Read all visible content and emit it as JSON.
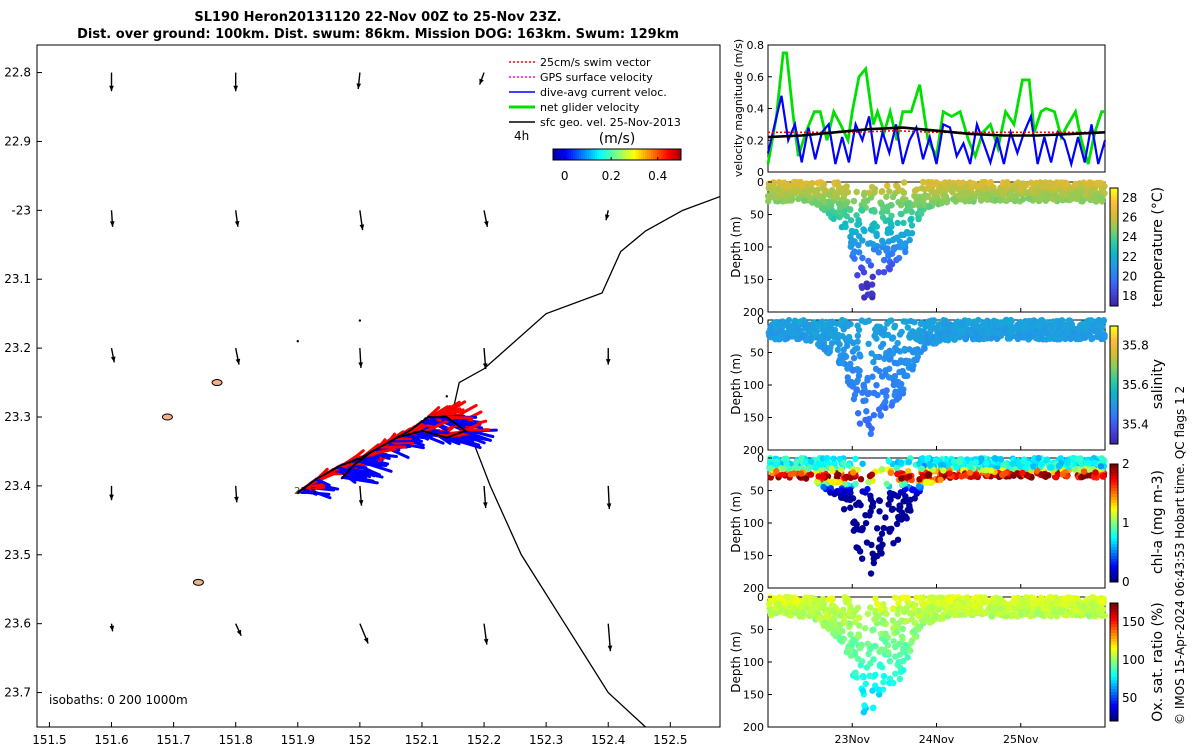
{
  "title": {
    "line1": "SL190 Heron20131120 22-Nov 00Z to 25-Nov 23Z.",
    "line2": "Dist. over ground: 100km. Dist. swum: 86km. Mission DOG: 163km. Swum: 129km"
  },
  "watermark": "© IMOS 15-Apr-2024 06:43:53 Hobart time. QC flags 1  2",
  "colors": {
    "swim": "#ff0000",
    "gps": "#ff00ff",
    "dive_avg": "#0000ff",
    "net": "#00e000",
    "sfc_geo": "#000000",
    "coast": "#000000",
    "island": "#f5b08a"
  },
  "chart_data": [
    {
      "id": "track_map",
      "type": "scatter",
      "xlim": [
        151.48,
        152.58
      ],
      "ylim": [
        -23.75,
        -22.76
      ],
      "xticks": [
        151.5,
        151.6,
        151.7,
        151.8,
        151.9,
        152,
        152.1,
        152.2,
        152.3,
        152.4,
        152.5
      ],
      "xtick_labels": [
        "151.5",
        "151.6",
        "151.7",
        "151.8",
        "151.9",
        "152",
        "152.1",
        "152.2",
        "152.3",
        "152.4",
        "152.5"
      ],
      "yticks": [
        -22.8,
        -22.9,
        -23.0,
        -23.1,
        -23.2,
        -23.3,
        -23.4,
        -23.5,
        -23.6,
        -23.7
      ],
      "ytick_labels": [
        "22.8",
        "22.9",
        "-23",
        "23.1",
        "23.2",
        "23.3",
        "23.4",
        "23.5",
        "23.6",
        "23.7"
      ],
      "legend": [
        {
          "label": "25cm/s swim vector",
          "color": "#ff0000",
          "style": "dotted"
        },
        {
          "label": "GPS surface velocity",
          "color": "#ff00ff",
          "style": "dotted"
        },
        {
          "label": "dive-avg current veloc.",
          "color": "#0000ff",
          "style": "solid"
        },
        {
          "label": "net glider velocity",
          "color": "#00e000",
          "style": "solid"
        },
        {
          "label": "sfc geo. vel. 25-Nov-2013",
          "color": "#000000",
          "style": "solid"
        }
      ],
      "time_scale_label": "4h",
      "colorbar": {
        "label": "(m/s)",
        "ticks": [
          0,
          0.2,
          0.4
        ],
        "tick_labels": [
          "0",
          "0.2",
          "0.4"
        ],
        "range": [
          -0.05,
          0.5
        ]
      },
      "isobath_label": "isobaths: 0   200  1000m",
      "start_label": "22-5",
      "geo_vectors": [
        {
          "lon": 151.6,
          "lat": -22.8,
          "u": 0.0,
          "v": -0.34
        },
        {
          "lon": 151.8,
          "lat": -22.8,
          "u": 0.0,
          "v": -0.34
        },
        {
          "lon": 152.0,
          "lat": -22.8,
          "u": -0.03,
          "v": -0.3
        },
        {
          "lon": 152.2,
          "lat": -22.8,
          "u": -0.08,
          "v": -0.22
        },
        {
          "lon": 152.4,
          "lat": -22.8,
          "u": 0.0,
          "v": 0.0
        },
        {
          "lon": 151.6,
          "lat": -23.0,
          "u": 0.02,
          "v": -0.3
        },
        {
          "lon": 151.8,
          "lat": -23.0,
          "u": 0.04,
          "v": -0.3
        },
        {
          "lon": 152.0,
          "lat": -23.0,
          "u": 0.05,
          "v": -0.36
        },
        {
          "lon": 152.2,
          "lat": -23.0,
          "u": 0.06,
          "v": -0.3
        },
        {
          "lon": 152.4,
          "lat": -23.0,
          "u": -0.04,
          "v": -0.18
        },
        {
          "lon": 151.6,
          "lat": -23.2,
          "u": 0.05,
          "v": -0.26
        },
        {
          "lon": 151.8,
          "lat": -23.2,
          "u": 0.06,
          "v": -0.3
        },
        {
          "lon": 152.0,
          "lat": -23.2,
          "u": 0.02,
          "v": -0.36
        },
        {
          "lon": 152.2,
          "lat": -23.2,
          "u": 0.03,
          "v": -0.38
        },
        {
          "lon": 152.4,
          "lat": -23.2,
          "u": 0.0,
          "v": -0.3
        },
        {
          "lon": 151.6,
          "lat": -23.4,
          "u": 0.0,
          "v": -0.26
        },
        {
          "lon": 151.8,
          "lat": -23.4,
          "u": 0.02,
          "v": -0.3
        },
        {
          "lon": 152.0,
          "lat": -23.4,
          "u": 0.03,
          "v": -0.36
        },
        {
          "lon": 152.2,
          "lat": -23.4,
          "u": 0.03,
          "v": -0.4
        },
        {
          "lon": 152.4,
          "lat": -23.4,
          "u": 0.02,
          "v": -0.42
        },
        {
          "lon": 151.6,
          "lat": -23.6,
          "u": 0.02,
          "v": -0.14
        },
        {
          "lon": 151.8,
          "lat": -23.6,
          "u": 0.1,
          "v": -0.22
        },
        {
          "lon": 152.0,
          "lat": -23.6,
          "u": 0.15,
          "v": -0.36
        },
        {
          "lon": 152.2,
          "lat": -23.6,
          "u": 0.05,
          "v": -0.38
        },
        {
          "lon": 152.4,
          "lat": -23.6,
          "u": 0.04,
          "v": -0.5
        }
      ],
      "isobath_1000m": [
        [
          152.58,
          -22.98
        ],
        [
          152.52,
          -23.0
        ],
        [
          152.46,
          -23.03
        ],
        [
          152.42,
          -23.06
        ],
        [
          152.39,
          -23.12
        ],
        [
          152.3,
          -23.15
        ],
        [
          152.2,
          -23.23
        ],
        [
          152.16,
          -23.25
        ],
        [
          152.15,
          -23.29
        ],
        [
          152.18,
          -23.33
        ],
        [
          152.21,
          -23.4
        ],
        [
          152.26,
          -23.5
        ],
        [
          152.33,
          -23.6
        ],
        [
          152.4,
          -23.7
        ],
        [
          152.46,
          -23.75
        ]
      ],
      "glider_track": [
        [
          151.9,
          -23.41
        ],
        [
          151.93,
          -23.39
        ],
        [
          151.97,
          -23.37
        ],
        [
          152.0,
          -23.36
        ],
        [
          152.04,
          -23.34
        ],
        [
          152.08,
          -23.32
        ],
        [
          152.11,
          -23.3
        ],
        [
          152.14,
          -23.3
        ],
        [
          152.17,
          -23.32
        ],
        [
          152.14,
          -23.33
        ],
        [
          152.1,
          -23.32
        ],
        [
          152.06,
          -23.33
        ],
        [
          152.02,
          -23.35
        ],
        [
          151.99,
          -23.37
        ],
        [
          151.97,
          -23.39
        ]
      ],
      "islands": [
        [
          151.69,
          -23.3
        ],
        [
          151.77,
          -23.25
        ],
        [
          151.74,
          -23.54
        ]
      ]
    },
    {
      "id": "velocity_timeseries",
      "type": "line",
      "ylabel": "velocity magnitude (m/s)",
      "xlim": [
        0,
        4
      ],
      "ylim": [
        0,
        0.8
      ],
      "yticks": [
        0,
        0.2,
        0.4,
        0.6,
        0.8
      ],
      "ytick_labels": [
        "0",
        "0.2",
        "0.4",
        "0.6",
        "0.8"
      ],
      "series": [
        {
          "name": "net glider velocity",
          "color": "#00e000",
          "x": [
            0.0,
            0.1,
            0.18,
            0.22,
            0.3,
            0.36,
            0.45,
            0.55,
            0.62,
            0.7,
            0.78,
            0.86,
            0.95,
            1.0,
            1.08,
            1.16,
            1.25,
            1.3,
            1.38,
            1.45,
            1.53,
            1.6,
            1.7,
            1.8,
            1.9,
            2.0,
            2.08,
            2.18,
            2.28,
            2.38,
            2.46,
            2.55,
            2.64,
            2.73,
            2.82,
            2.92,
            3.02,
            3.1,
            3.16,
            3.24,
            3.3,
            3.4,
            3.48,
            3.56,
            3.65,
            3.72,
            3.8,
            3.88,
            3.96,
            4.0
          ],
          "y": [
            0.05,
            0.35,
            0.75,
            0.75,
            0.35,
            0.1,
            0.25,
            0.38,
            0.38,
            0.2,
            0.38,
            0.3,
            0.2,
            0.38,
            0.6,
            0.65,
            0.3,
            0.38,
            0.25,
            0.38,
            0.2,
            0.38,
            0.38,
            0.55,
            0.2,
            0.1,
            0.38,
            0.35,
            0.38,
            0.2,
            0.1,
            0.25,
            0.3,
            0.15,
            0.38,
            0.3,
            0.58,
            0.58,
            0.25,
            0.38,
            0.4,
            0.38,
            0.22,
            0.3,
            0.38,
            0.2,
            0.05,
            0.25,
            0.38,
            0.38
          ]
        },
        {
          "name": "dive-avg current veloc.",
          "color": "#0000ff",
          "x": [
            0.0,
            0.08,
            0.16,
            0.24,
            0.32,
            0.4,
            0.48,
            0.56,
            0.64,
            0.72,
            0.8,
            0.88,
            0.96,
            1.04,
            1.12,
            1.2,
            1.28,
            1.36,
            1.44,
            1.52,
            1.6,
            1.68,
            1.76,
            1.84,
            1.92,
            2.0,
            2.08,
            2.16,
            2.24,
            2.32,
            2.4,
            2.48,
            2.56,
            2.64,
            2.72,
            2.8,
            2.88,
            2.96,
            3.04,
            3.12,
            3.2,
            3.28,
            3.36,
            3.44,
            3.52,
            3.6,
            3.68,
            3.76,
            3.84,
            3.92,
            4.0
          ],
          "y": [
            0.12,
            0.3,
            0.48,
            0.2,
            0.3,
            0.06,
            0.28,
            0.08,
            0.25,
            0.3,
            0.05,
            0.22,
            0.06,
            0.3,
            0.2,
            0.35,
            0.05,
            0.25,
            0.12,
            0.3,
            0.05,
            0.2,
            0.28,
            0.08,
            0.22,
            0.05,
            0.3,
            0.28,
            0.1,
            0.18,
            0.05,
            0.3,
            0.18,
            0.06,
            0.22,
            0.05,
            0.25,
            0.12,
            0.25,
            0.35,
            0.05,
            0.22,
            0.06,
            0.25,
            0.2,
            0.05,
            0.22,
            0.06,
            0.3,
            0.05,
            0.2
          ]
        },
        {
          "name": "25cm/s swim vector",
          "color": "#ff0000",
          "x": [
            0.0,
            0.5,
            1.0,
            1.5,
            2.0,
            2.5,
            3.0,
            3.5,
            4.0
          ],
          "y": [
            0.25,
            0.25,
            0.25,
            0.26,
            0.25,
            0.25,
            0.25,
            0.25,
            0.25
          ]
        },
        {
          "name": "sfc geo. vel. 25-Nov-2013",
          "color": "#000000",
          "x": [
            0.0,
            0.4,
            0.8,
            1.2,
            1.6,
            2.0,
            2.4,
            2.8,
            3.2,
            3.6,
            4.0
          ],
          "y": [
            0.22,
            0.23,
            0.25,
            0.27,
            0.28,
            0.26,
            0.24,
            0.23,
            0.23,
            0.24,
            0.25
          ]
        }
      ]
    },
    {
      "id": "temperature_section",
      "type": "heatmap",
      "ylabel": "Depth (m)",
      "clabel": "temperature (°C)",
      "ylim": [
        0,
        200
      ],
      "yticks": [
        0,
        50,
        100,
        150,
        200
      ],
      "clim": [
        17,
        29
      ],
      "cticks": [
        18,
        20,
        22,
        24,
        26,
        28
      ],
      "surface_value": 26.5,
      "deep_value": 17.5
    },
    {
      "id": "salinity_section",
      "type": "heatmap",
      "ylabel": "Depth (m)",
      "clabel": "salinity",
      "ylim": [
        0,
        200
      ],
      "yticks": [
        0,
        50,
        100,
        150,
        200
      ],
      "clim": [
        35.3,
        35.9
      ],
      "cticks": [
        35.4,
        35.6,
        35.8
      ],
      "surface_value": 35.52,
      "deep_value": 35.43
    },
    {
      "id": "chla_section",
      "type": "heatmap",
      "ylabel": "Depth (m)",
      "clabel": "chl-a (mg m-3)",
      "ylim": [
        0,
        200
      ],
      "yticks": [
        0,
        50,
        100,
        150,
        200
      ],
      "clim": [
        0,
        2
      ],
      "cticks": [
        0,
        1,
        2
      ],
      "surface_value": 0.6,
      "deep_value": 0.05
    },
    {
      "id": "oxygen_section",
      "type": "heatmap",
      "ylabel": "Depth (m)",
      "clabel": "Ox. sat. ratio (%)",
      "ylim": [
        0,
        200
      ],
      "yticks": [
        0,
        50,
        100,
        150,
        200
      ],
      "clim": [
        20,
        175
      ],
      "cticks": [
        50,
        100,
        150
      ],
      "surface_value": 112,
      "deep_value": 75,
      "time_axis": {
        "xlim": [
          0,
          4
        ],
        "ticks": [
          1,
          2,
          3
        ],
        "tick_labels": [
          "23Nov",
          "24Nov",
          "25Nov"
        ]
      }
    }
  ]
}
